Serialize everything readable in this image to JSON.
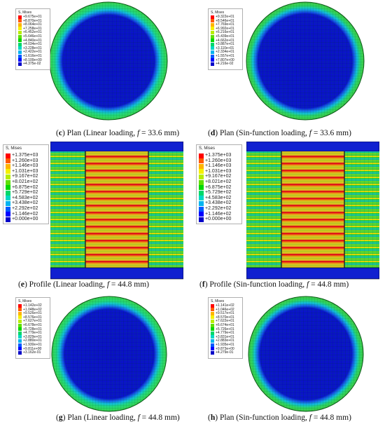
{
  "legend_title": "S, Mises",
  "palette": [
    "#ff0000",
    "#ff5a00",
    "#ffb400",
    "#f5f000",
    "#b8ee00",
    "#5ee000",
    "#00d800",
    "#00d86a",
    "#00d8c4",
    "#00b4f0",
    "#005aff",
    "#0000ff",
    "#0000c8"
  ],
  "captions": {
    "c": {
      "letter": "c",
      "pre": "Plan (Linear loading, ",
      "f": "f",
      "post": " = 33.6 mm)"
    },
    "d": {
      "letter": "d",
      "pre": "Plan (Sin-function loading, ",
      "f": "f",
      "post": " = 33.6 mm)"
    },
    "e": {
      "letter": "e",
      "pre": "Profile (Linear loading, ",
      "f": "f",
      "post": " = 44.8 mm)"
    },
    "f": {
      "letter": "f",
      "pre": "Profile (Sin-function loading, ",
      "f": "f",
      "post": " = 44.8 mm)"
    },
    "g": {
      "letter": "g",
      "pre": "Plan (Linear loading, ",
      "f": "f",
      "post": " = 44.8 mm)"
    },
    "h": {
      "letter": "h",
      "pre": "Plan (Sin-function loading, ",
      "f": "f",
      "post": " = 44.8 mm)"
    }
  },
  "legends": {
    "c": [
      "+9.675e+01",
      "+8.870e+01",
      "+8.064e+01",
      "+7.258e+01",
      "+6.452e+01",
      "+5.646e+01",
      "+4.840e+01",
      "+4.034e+01",
      "+3.228e+01",
      "+2.422e+01",
      "+1.616e+01",
      "+8.100e+00",
      "+4.375e-02"
    ],
    "d": [
      "+9.322e+01",
      "+8.546e+01",
      "+7.769e+01",
      "+6.992e+01",
      "+6.216e+01",
      "+5.439e+01",
      "+4.662e+01",
      "+3.887e+01",
      "+3.110e+01",
      "+2.334e+01",
      "+1.557e+01",
      "+7.807e+00",
      "+4.216e-02"
    ],
    "e": [
      "+1.375e+03",
      "+1.260e+03",
      "+1.146e+03",
      "+1.031e+03",
      "+9.167e+02",
      "+8.021e+02",
      "+6.875e+02",
      "+5.729e+02",
      "+4.583e+02",
      "+3.438e+02",
      "+2.292e+02",
      "+1.146e+02",
      "+0.000e+00"
    ],
    "f": [
      "+1.375e+03",
      "+1.260e+03",
      "+1.146e+03",
      "+1.031e+03",
      "+9.167e+02",
      "+8.021e+02",
      "+6.875e+02",
      "+5.729e+02",
      "+4.583e+02",
      "+3.438e+02",
      "+2.292e+02",
      "+1.146e+02",
      "+0.000e+00"
    ],
    "g": [
      "+1.142e+02",
      "+1.048e+02",
      "+9.526e+01",
      "+8.576e+01",
      "+7.627e+01",
      "+6.678e+01",
      "+5.728e+01",
      "+4.779e+01",
      "+3.829e+01",
      "+2.880e+01",
      "+1.930e+01",
      "+9.811e+00",
      "+3.162e-01"
    ],
    "h": [
      "+1.141e+02",
      "+1.046e+02",
      "+9.517e+01",
      "+8.570e+01",
      "+7.622e+01",
      "+6.674e+01",
      "+5.726e+01",
      "+4.779e+01",
      "+3.831e+01",
      "+2.883e+01",
      "+1.935e+01",
      "+9.873e+00",
      "+4.279e-01"
    ]
  }
}
